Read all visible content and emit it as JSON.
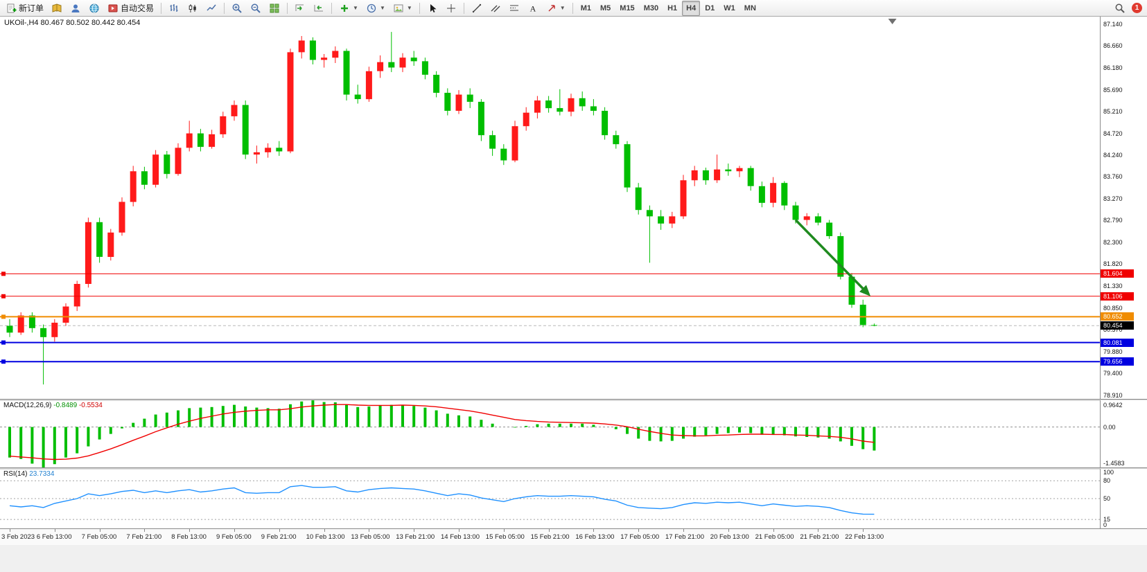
{
  "toolbar": {
    "groups": [
      {
        "items": [
          {
            "name": "new-order-button",
            "icon": "new-order-icon",
            "label": "新订单"
          },
          {
            "name": "market-watch-button",
            "icon": "book-icon"
          },
          {
            "name": "data-window-button",
            "icon": "profile-icon"
          },
          {
            "name": "navigator-button",
            "icon": "globe-icon"
          },
          {
            "name": "auto-trading-button",
            "icon": "autotrade-icon",
            "label": "自动交易"
          }
        ]
      },
      {
        "items": [
          {
            "name": "bar-chart-button",
            "icon": "bars-chart-icon"
          },
          {
            "name": "candle-chart-button",
            "icon": "candles-chart-icon"
          },
          {
            "name": "line-chart-button",
            "icon": "line-chart-icon"
          }
        ]
      },
      {
        "items": [
          {
            "name": "zoom-in-button",
            "icon": "zoom-in-icon"
          },
          {
            "name": "zoom-out-button",
            "icon": "zoom-out-icon"
          },
          {
            "name": "tile-windows-button",
            "icon": "tile-windows-icon"
          }
        ]
      },
      {
        "items": [
          {
            "name": "auto-scroll-button",
            "icon": "autoscroll-icon"
          },
          {
            "name": "chart-shift-button",
            "icon": "chart-shift-icon"
          }
        ]
      },
      {
        "items": [
          {
            "name": "add-indicator-button",
            "icon": "add-indicator-icon",
            "caret": true
          },
          {
            "name": "periods-button",
            "icon": "clock-icon",
            "caret": true
          },
          {
            "name": "templates-button",
            "icon": "template-icon",
            "caret": true
          }
        ]
      },
      {
        "items": [
          {
            "name": "cursor-button",
            "icon": "cursor-icon"
          },
          {
            "name": "crosshair-button",
            "icon": "crosshair-icon"
          }
        ]
      },
      {
        "items": [
          {
            "name": "trendline-button",
            "icon": "trendline-icon"
          },
          {
            "name": "channel-button",
            "icon": "channel-icon"
          },
          {
            "name": "fibonacci-button",
            "icon": "fibonacci-icon"
          },
          {
            "name": "text-button",
            "icon": "text-icon"
          },
          {
            "name": "arrows-button",
            "icon": "arrows-icon",
            "caret": true
          }
        ]
      },
      {
        "items": [
          {
            "name": "tf-m1-button",
            "label": "M1",
            "tf": true
          },
          {
            "name": "tf-m5-button",
            "label": "M5",
            "tf": true
          },
          {
            "name": "tf-m15-button",
            "label": "M15",
            "tf": true
          },
          {
            "name": "tf-m30-button",
            "label": "M30",
            "tf": true
          },
          {
            "name": "tf-h1-button",
            "label": "H1",
            "tf": true
          },
          {
            "name": "tf-h4-button",
            "label": "H4",
            "tf": true,
            "active": true
          },
          {
            "name": "tf-d1-button",
            "label": "D1",
            "tf": true
          },
          {
            "name": "tf-w1-button",
            "label": "W1",
            "tf": true
          },
          {
            "name": "tf-mn-button",
            "label": "MN",
            "tf": true
          }
        ]
      }
    ],
    "right": {
      "search": {
        "name": "search-button",
        "icon": "search-icon"
      },
      "badge": "1"
    }
  },
  "chart": {
    "header": "UKOil-,H4  80.467 80.502 80.442 80.454"
  },
  "indicators": {
    "macd": {
      "name": "MACD(12,26,9)",
      "value_main": "-0.8489",
      "value_signal": "-0.5534",
      "axis": [
        "0.9642",
        "0.00",
        "-1.4583"
      ]
    },
    "rsi": {
      "name": "RSI(14)",
      "value": "23.7334",
      "axis_values": [
        100,
        80,
        50,
        15,
        0
      ],
      "dashed_levels": [
        80,
        50,
        15
      ]
    }
  },
  "chart_data": {
    "type": "candlestick",
    "symbol": "UKOil-",
    "period": "H4",
    "color_convention": {
      "up": "#ff1a1a",
      "down": "#00be00",
      "note": "red = bullish, green = bearish"
    },
    "ylim": [
      78.83,
      87.31
    ],
    "price_ticks": [
      "87.140",
      "86.660",
      "86.180",
      "85.690",
      "85.210",
      "84.720",
      "84.240",
      "83.760",
      "83.270",
      "82.790",
      "82.300",
      "81.820",
      "81.330",
      "80.850",
      "80.370",
      "79.880",
      "79.400",
      "78.910"
    ],
    "time_labels": [
      "3 Feb 2023",
      "6 Feb 13:00",
      "7 Feb 05:00",
      "7 Feb 21:00",
      "8 Feb 13:00",
      "9 Feb 05:00",
      "9 Feb 21:00",
      "10 Feb 13:00",
      "13 Feb 05:00",
      "13 Feb 21:00",
      "14 Feb 13:00",
      "15 Feb 05:00",
      "15 Feb 21:00",
      "16 Feb 13:00",
      "17 Feb 05:00",
      "17 Feb 21:00",
      "20 Feb 13:00",
      "21 Feb 05:00",
      "21 Feb 21:00",
      "22 Feb 13:00"
    ],
    "label_stride": 4,
    "candles": [
      [
        80.45,
        80.6,
        80.2,
        80.3
      ],
      [
        80.3,
        80.75,
        80.25,
        80.68
      ],
      [
        80.68,
        80.75,
        80.3,
        80.4
      ],
      [
        80.4,
        80.48,
        79.15,
        80.2
      ],
      [
        80.2,
        80.6,
        80.1,
        80.52
      ],
      [
        80.52,
        80.95,
        80.45,
        80.88
      ],
      [
        80.88,
        81.45,
        80.78,
        81.38
      ],
      [
        81.38,
        82.85,
        81.3,
        82.75
      ],
      [
        82.75,
        82.85,
        81.85,
        81.98
      ],
      [
        81.98,
        82.6,
        81.9,
        82.52
      ],
      [
        82.52,
        83.3,
        82.45,
        83.2
      ],
      [
        83.2,
        84.0,
        83.1,
        83.88
      ],
      [
        83.88,
        83.98,
        83.48,
        83.58
      ],
      [
        83.58,
        84.35,
        83.52,
        84.25
      ],
      [
        84.25,
        84.33,
        83.72,
        83.82
      ],
      [
        83.82,
        84.5,
        83.78,
        84.4
      ],
      [
        84.4,
        85.0,
        84.32,
        84.72
      ],
      [
        84.72,
        84.82,
        84.32,
        84.42
      ],
      [
        84.42,
        84.8,
        84.38,
        84.7
      ],
      [
        84.7,
        85.2,
        84.62,
        85.1
      ],
      [
        85.1,
        85.45,
        85.0,
        85.35
      ],
      [
        85.35,
        85.45,
        84.15,
        84.25
      ],
      [
        84.25,
        84.45,
        84.05,
        84.3
      ],
      [
        84.3,
        84.5,
        84.18,
        84.4
      ],
      [
        84.4,
        84.55,
        84.22,
        84.32
      ],
      [
        84.32,
        86.6,
        84.28,
        86.52
      ],
      [
        86.52,
        86.88,
        86.38,
        86.78
      ],
      [
        86.78,
        86.85,
        86.25,
        86.35
      ],
      [
        86.35,
        86.48,
        86.18,
        86.4
      ],
      [
        86.4,
        86.65,
        86.28,
        86.55
      ],
      [
        86.55,
        86.6,
        85.45,
        85.58
      ],
      [
        85.58,
        85.8,
        85.38,
        85.48
      ],
      [
        85.48,
        86.2,
        85.42,
        86.1
      ],
      [
        86.1,
        86.45,
        85.95,
        86.3
      ],
      [
        86.3,
        86.97,
        86.08,
        86.18
      ],
      [
        86.18,
        86.5,
        86.08,
        86.4
      ],
      [
        86.4,
        86.55,
        86.22,
        86.32
      ],
      [
        86.32,
        86.4,
        85.92,
        86.02
      ],
      [
        86.02,
        86.1,
        85.52,
        85.62
      ],
      [
        85.62,
        85.72,
        85.12,
        85.22
      ],
      [
        85.22,
        85.68,
        85.15,
        85.58
      ],
      [
        85.58,
        85.72,
        85.28,
        85.42
      ],
      [
        85.42,
        85.48,
        84.55,
        84.68
      ],
      [
        84.68,
        84.78,
        84.22,
        84.38
      ],
      [
        84.38,
        84.48,
        84.02,
        84.12
      ],
      [
        84.12,
        85.0,
        84.08,
        84.88
      ],
      [
        84.88,
        85.3,
        84.78,
        85.18
      ],
      [
        85.18,
        85.55,
        85.05,
        85.45
      ],
      [
        85.45,
        85.55,
        85.18,
        85.28
      ],
      [
        85.28,
        85.7,
        85.12,
        85.2
      ],
      [
        85.2,
        85.6,
        85.1,
        85.5
      ],
      [
        85.5,
        85.65,
        85.22,
        85.32
      ],
      [
        85.32,
        85.48,
        85.12,
        85.22
      ],
      [
        85.22,
        85.3,
        84.58,
        84.68
      ],
      [
        84.68,
        84.78,
        84.38,
        84.48
      ],
      [
        84.48,
        84.55,
        83.42,
        83.52
      ],
      [
        83.52,
        83.62,
        82.92,
        83.02
      ],
      [
        83.02,
        83.12,
        81.85,
        82.88
      ],
      [
        82.88,
        83.02,
        82.58,
        82.72
      ],
      [
        82.72,
        82.98,
        82.62,
        82.88
      ],
      [
        82.88,
        83.8,
        82.82,
        83.68
      ],
      [
        83.68,
        84.0,
        83.55,
        83.9
      ],
      [
        83.9,
        83.96,
        83.58,
        83.68
      ],
      [
        83.68,
        84.25,
        83.62,
        83.92
      ],
      [
        83.92,
        84.05,
        83.78,
        83.88
      ],
      [
        83.88,
        84.0,
        83.75,
        83.95
      ],
      [
        83.95,
        84.0,
        83.45,
        83.55
      ],
      [
        83.55,
        83.65,
        83.08,
        83.18
      ],
      [
        83.18,
        83.75,
        83.08,
        83.62
      ],
      [
        83.62,
        83.66,
        83.02,
        83.12
      ],
      [
        83.12,
        83.2,
        82.72,
        82.8
      ],
      [
        82.8,
        82.95,
        82.68,
        82.88
      ],
      [
        82.88,
        82.95,
        82.68,
        82.74
      ],
      [
        82.74,
        82.8,
        82.38,
        82.44
      ],
      [
        82.44,
        82.52,
        81.48,
        81.54
      ],
      [
        81.54,
        81.62,
        80.85,
        80.92
      ],
      [
        80.92,
        81.03,
        80.42,
        80.47
      ],
      [
        80.467,
        80.502,
        80.442,
        80.454
      ]
    ],
    "levels": [
      {
        "price": 81.604,
        "label": "81.604",
        "color": "#f00000",
        "width": 1
      },
      {
        "price": 81.106,
        "label": "81.106",
        "color": "#f00000",
        "width": 1
      },
      {
        "price": 80.652,
        "label": "80.652",
        "color": "#f08c00",
        "width": 2
      },
      {
        "price": 80.081,
        "label": "80.081",
        "color": "#0000e0",
        "width": 2
      },
      {
        "price": 79.656,
        "label": "79.656",
        "color": "#0000e0",
        "width": 2
      }
    ],
    "bid": {
      "price": 80.454,
      "label": "80.454",
      "badge_color": "#000000"
    },
    "arrow": {
      "from": {
        "index": 70,
        "price": 82.8
      },
      "to": {
        "index": 76.5,
        "price": 81.15
      },
      "color": "#1f8a1f"
    },
    "macd": {
      "ylim": [
        -1.4583,
        0.9642
      ],
      "histogram": [
        -1.1,
        -1.15,
        -1.32,
        -1.4583,
        -1.34,
        -1.1,
        -0.95,
        -0.7,
        -0.45,
        -0.25,
        -0.05,
        0.15,
        0.3,
        0.45,
        0.52,
        0.6,
        0.68,
        0.7,
        0.72,
        0.76,
        0.8,
        0.74,
        0.7,
        0.68,
        0.66,
        0.82,
        0.92,
        0.9642,
        0.9,
        0.89,
        0.8,
        0.72,
        0.74,
        0.78,
        0.8,
        0.79,
        0.76,
        0.7,
        0.6,
        0.48,
        0.42,
        0.38,
        0.26,
        0.12,
        0.0,
        -0.02,
        0.04,
        0.1,
        0.12,
        0.12,
        0.12,
        0.12,
        0.08,
        0.0,
        -0.08,
        -0.25,
        -0.42,
        -0.5,
        -0.52,
        -0.5,
        -0.42,
        -0.35,
        -0.3,
        -0.25,
        -0.22,
        -0.2,
        -0.22,
        -0.28,
        -0.28,
        -0.3,
        -0.34,
        -0.36,
        -0.38,
        -0.42,
        -0.52,
        -0.68,
        -0.8,
        -0.8489
      ],
      "signal": [
        -1.05,
        -1.08,
        -1.11,
        -1.15,
        -1.17,
        -1.16,
        -1.12,
        -1.04,
        -0.92,
        -0.79,
        -0.64,
        -0.48,
        -0.33,
        -0.17,
        -0.03,
        0.1,
        0.21,
        0.31,
        0.39,
        0.47,
        0.53,
        0.57,
        0.6,
        0.62,
        0.62,
        0.66,
        0.72,
        0.76,
        0.79,
        0.81,
        0.81,
        0.79,
        0.78,
        0.78,
        0.78,
        0.79,
        0.78,
        0.76,
        0.73,
        0.68,
        0.63,
        0.58,
        0.51,
        0.43,
        0.35,
        0.27,
        0.23,
        0.2,
        0.18,
        0.17,
        0.16,
        0.15,
        0.14,
        0.11,
        0.07,
        0.01,
        -0.08,
        -0.16,
        -0.23,
        -0.29,
        -0.31,
        -0.32,
        -0.32,
        -0.3,
        -0.29,
        -0.27,
        -0.26,
        -0.26,
        -0.27,
        -0.27,
        -0.29,
        -0.3,
        -0.32,
        -0.34,
        -0.37,
        -0.43,
        -0.51,
        -0.5534
      ]
    },
    "rsi": {
      "ylim": [
        0,
        100
      ],
      "values": [
        38,
        36,
        38,
        35,
        42,
        46,
        50,
        58,
        55,
        58,
        62,
        64,
        60,
        63,
        60,
        63,
        65,
        61,
        63,
        66,
        68,
        60,
        59,
        60,
        60,
        70,
        72,
        69,
        69,
        70,
        63,
        61,
        65,
        67,
        68,
        67,
        66,
        63,
        59,
        55,
        58,
        56,
        51,
        48,
        45,
        50,
        53,
        55,
        54,
        54,
        55,
        54,
        53,
        49,
        46,
        39,
        35,
        34,
        33,
        35,
        40,
        43,
        42,
        44,
        43,
        44,
        41,
        38,
        41,
        39,
        37,
        38,
        37,
        35,
        30,
        26,
        24,
        23.7334
      ]
    }
  }
}
